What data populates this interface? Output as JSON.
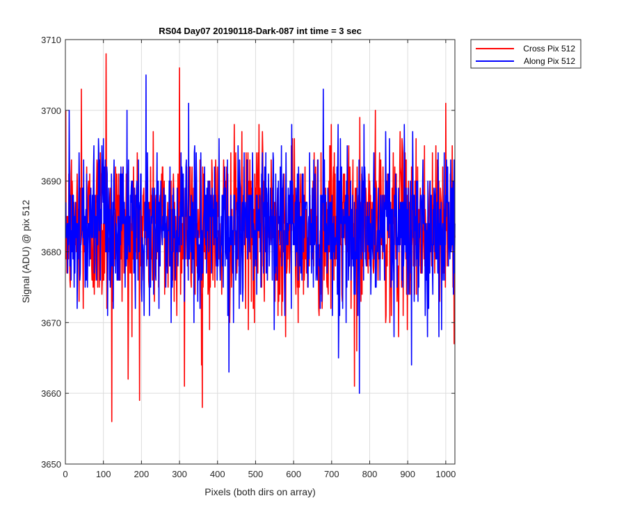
{
  "chart_data": {
    "type": "line",
    "title": "RS04 Day07 20190118-Dark-087 int time = 3 sec",
    "xlabel": "Pixels (both dirs on array)",
    "ylabel": "Signal (ADU) @ pix 512",
    "xlim": [
      0,
      1024
    ],
    "ylim": [
      3650,
      3710
    ],
    "xticks": [
      0,
      100,
      200,
      300,
      400,
      500,
      600,
      700,
      800,
      900,
      1000
    ],
    "yticks": [
      3650,
      3660,
      3670,
      3680,
      3690,
      3700,
      3710
    ],
    "grid": true,
    "legend_position": "outside-top-right",
    "x_range_of_samples": [
      1,
      1024
    ],
    "series": [
      {
        "name": "Cross Pix 512",
        "color": "#ff0000",
        "n_points": 1024,
        "mean": 3683.5,
        "std": 6,
        "min": 3656,
        "max": 3708,
        "extremes": [
          {
            "x": 42,
            "y": 3703
          },
          {
            "x": 107,
            "y": 3708
          },
          {
            "x": 122,
            "y": 3656
          },
          {
            "x": 165,
            "y": 3662
          },
          {
            "x": 300,
            "y": 3706
          },
          {
            "x": 313,
            "y": 3661
          },
          {
            "x": 358,
            "y": 3664
          },
          {
            "x": 760,
            "y": 3661
          },
          {
            "x": 1000,
            "y": 3701
          }
        ]
      },
      {
        "name": "Along Pix 512",
        "color": "#0000ff",
        "n_points": 1024,
        "mean": 3683.5,
        "std": 5.5,
        "min": 3660,
        "max": 3705,
        "extremes": [
          {
            "x": 10,
            "y": 3700
          },
          {
            "x": 212,
            "y": 3705
          },
          {
            "x": 430,
            "y": 3663
          },
          {
            "x": 773,
            "y": 3660
          },
          {
            "x": 910,
            "y": 3664
          }
        ]
      }
    ]
  }
}
